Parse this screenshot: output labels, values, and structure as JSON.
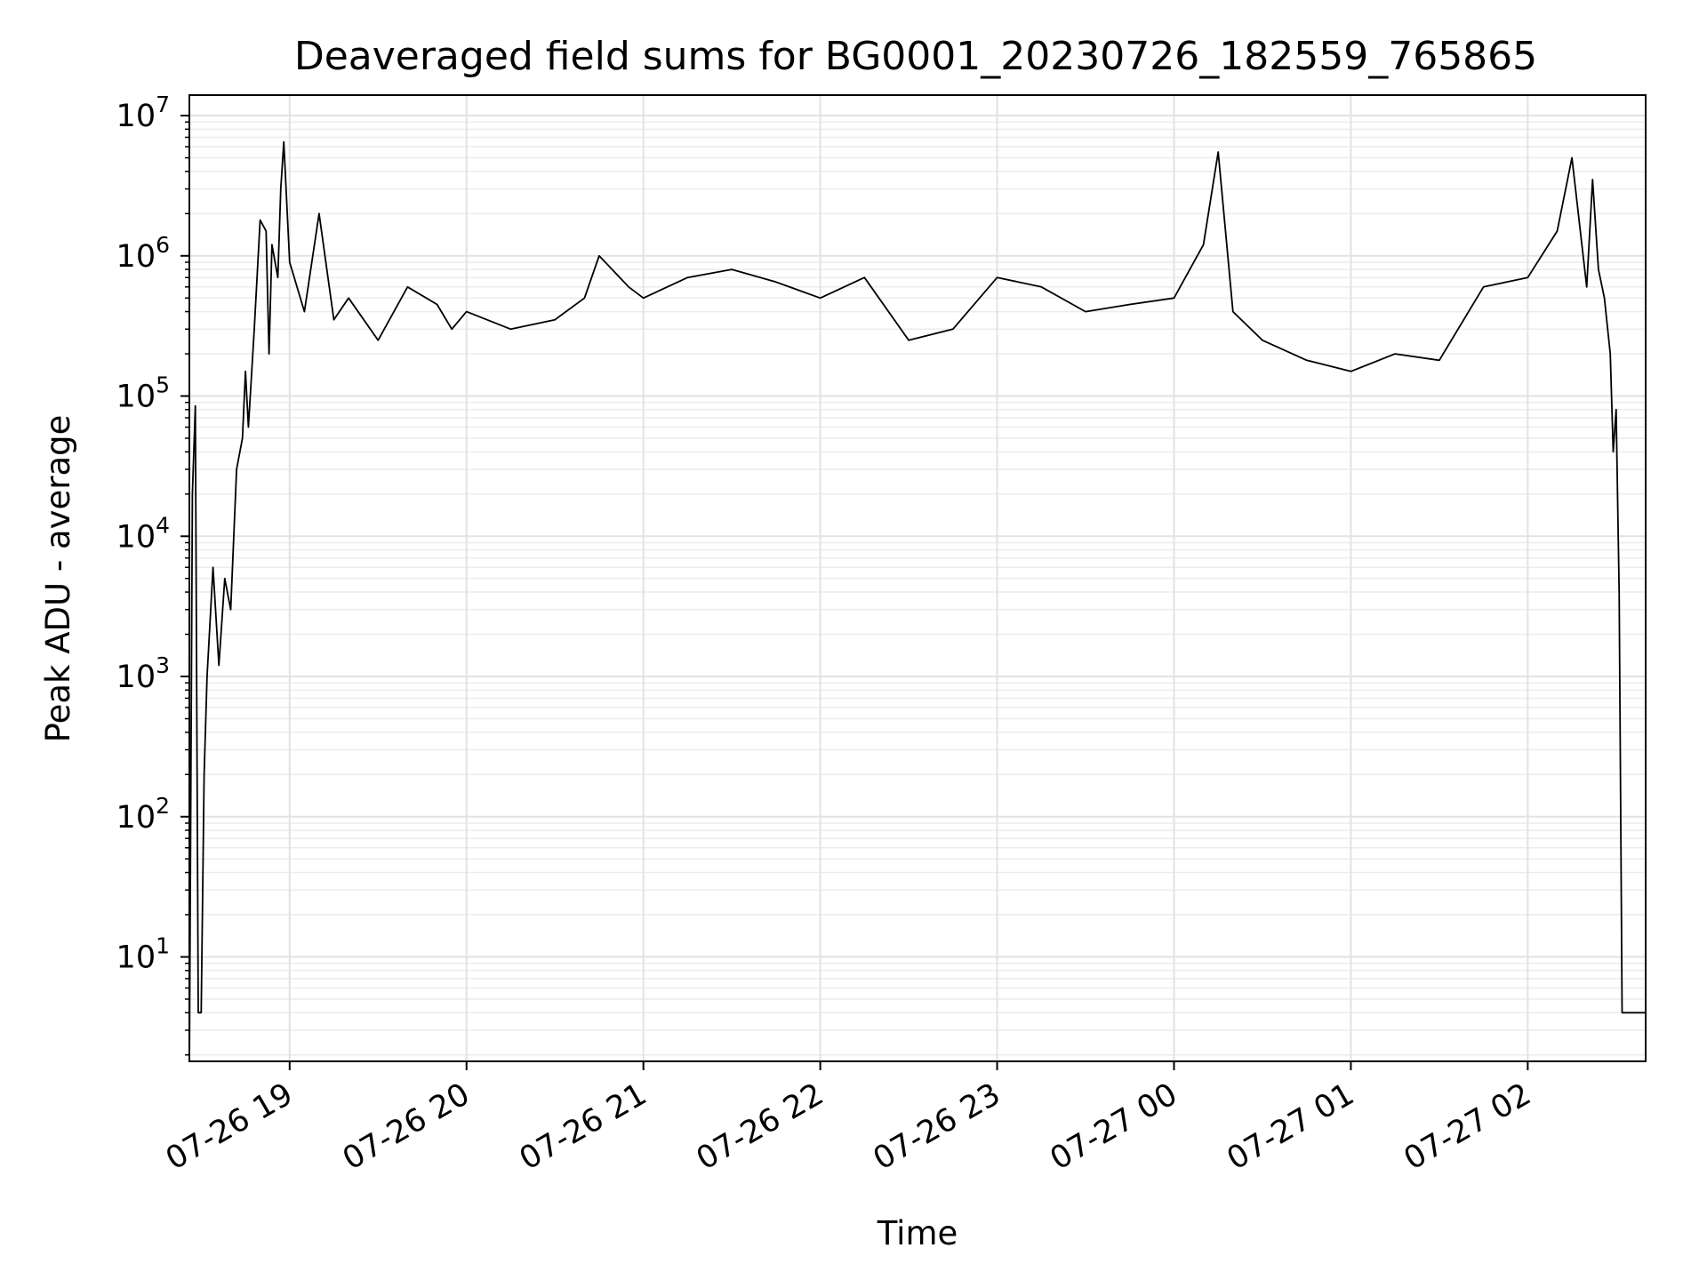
{
  "colors": {
    "background": "#ffffff",
    "line": "#000000",
    "grid_major": "#e2e2e2",
    "grid_minor": "#ececec",
    "axes": "#000000"
  },
  "chart_data": {
    "type": "line",
    "title": "Deaveraged field sums for BG0001_20230726_182559_765865",
    "xlabel": "Time",
    "ylabel": "Peak ADU - average",
    "yscale": "log",
    "ylim": [
      1.8,
      14000000
    ],
    "xlim": [
      "2023-07-26 18:25:59",
      "2023-07-27 02:40:00"
    ],
    "grid": true,
    "x_ticks": [
      {
        "label": "07-26 19",
        "time": "2023-07-26 19:00"
      },
      {
        "label": "07-26 20",
        "time": "2023-07-26 20:00"
      },
      {
        "label": "07-26 21",
        "time": "2023-07-26 21:00"
      },
      {
        "label": "07-26 22",
        "time": "2023-07-26 22:00"
      },
      {
        "label": "07-26 23",
        "time": "2023-07-26 23:00"
      },
      {
        "label": "07-27 00",
        "time": "2023-07-27 00:00"
      },
      {
        "label": "07-27 01",
        "time": "2023-07-27 01:00"
      },
      {
        "label": "07-27 02",
        "time": "2023-07-27 02:00"
      }
    ],
    "y_ticks": [
      {
        "base": "10",
        "exp": "1",
        "value": 10
      },
      {
        "base": "10",
        "exp": "2",
        "value": 100
      },
      {
        "base": "10",
        "exp": "3",
        "value": 1000
      },
      {
        "base": "10",
        "exp": "4",
        "value": 10000
      },
      {
        "base": "10",
        "exp": "5",
        "value": 100000
      },
      {
        "base": "10",
        "exp": "6",
        "value": 1000000
      },
      {
        "base": "10",
        "exp": "7",
        "value": 10000000
      }
    ],
    "series": [
      {
        "x": [
          "2023-07-26 18:26:00",
          "2023-07-26 18:27:00",
          "2023-07-26 18:28:00",
          "2023-07-26 18:29:00",
          "2023-07-26 18:30:00",
          "2023-07-26 18:31:00",
          "2023-07-26 18:32:00",
          "2023-07-26 18:34:00",
          "2023-07-26 18:36:00",
          "2023-07-26 18:38:00",
          "2023-07-26 18:40:00",
          "2023-07-26 18:42:00",
          "2023-07-26 18:44:00",
          "2023-07-26 18:45:00",
          "2023-07-26 18:46:00",
          "2023-07-26 18:48:00",
          "2023-07-26 18:50:00",
          "2023-07-26 18:52:00",
          "2023-07-26 18:53:00",
          "2023-07-26 18:54:00",
          "2023-07-26 18:56:00",
          "2023-07-26 18:57:00",
          "2023-07-26 18:58:00",
          "2023-07-26 19:00:00",
          "2023-07-26 19:05:00",
          "2023-07-26 19:10:00",
          "2023-07-26 19:15:00",
          "2023-07-26 19:20:00",
          "2023-07-26 19:30:00",
          "2023-07-26 19:40:00",
          "2023-07-26 19:50:00",
          "2023-07-26 19:55:00",
          "2023-07-26 20:00:00",
          "2023-07-26 20:15:00",
          "2023-07-26 20:30:00",
          "2023-07-26 20:40:00",
          "2023-07-26 20:45:00",
          "2023-07-26 20:55:00",
          "2023-07-26 21:00:00",
          "2023-07-26 21:15:00",
          "2023-07-26 21:30:00",
          "2023-07-26 21:45:00",
          "2023-07-26 22:00:00",
          "2023-07-26 22:15:00",
          "2023-07-26 22:30:00",
          "2023-07-26 22:45:00",
          "2023-07-26 23:00:00",
          "2023-07-26 23:15:00",
          "2023-07-26 23:30:00",
          "2023-07-26 23:45:00",
          "2023-07-27 00:00:00",
          "2023-07-27 00:10:00",
          "2023-07-27 00:15:00",
          "2023-07-27 00:20:00",
          "2023-07-27 00:30:00",
          "2023-07-27 00:45:00",
          "2023-07-27 01:00:00",
          "2023-07-27 01:15:00",
          "2023-07-27 01:30:00",
          "2023-07-27 01:45:00",
          "2023-07-27 02:00:00",
          "2023-07-27 02:10:00",
          "2023-07-27 02:15:00",
          "2023-07-27 02:20:00",
          "2023-07-27 02:22:00",
          "2023-07-27 02:24:00",
          "2023-07-27 02:26:00",
          "2023-07-27 02:28:00",
          "2023-07-27 02:29:00",
          "2023-07-27 02:30:00",
          "2023-07-27 02:31:00",
          "2023-07-27 02:32:00",
          "2023-07-27 02:34:00",
          "2023-07-27 02:37:00",
          "2023-07-27 02:40:00"
        ],
        "y": [
          2,
          20000,
          85000,
          4,
          4,
          200,
          1000,
          6000,
          1200,
          5000,
          3000,
          30000,
          50000,
          150000,
          60000,
          300000,
          1800000,
          1500000,
          200000,
          1200000,
          700000,
          3000000,
          6500000,
          900000,
          400000,
          2000000,
          350000,
          500000,
          250000,
          600000,
          450000,
          300000,
          400000,
          300000,
          350000,
          500000,
          1000000,
          600000,
          500000,
          700000,
          800000,
          650000,
          500000,
          700000,
          250000,
          300000,
          700000,
          600000,
          400000,
          450000,
          500000,
          1200000,
          5500000,
          400000,
          250000,
          180000,
          150000,
          200000,
          180000,
          600000,
          700000,
          1500000,
          5000000,
          600000,
          3500000,
          800000,
          500000,
          200000,
          40000,
          80000,
          4000,
          4,
          4,
          4,
          4
        ]
      }
    ]
  }
}
